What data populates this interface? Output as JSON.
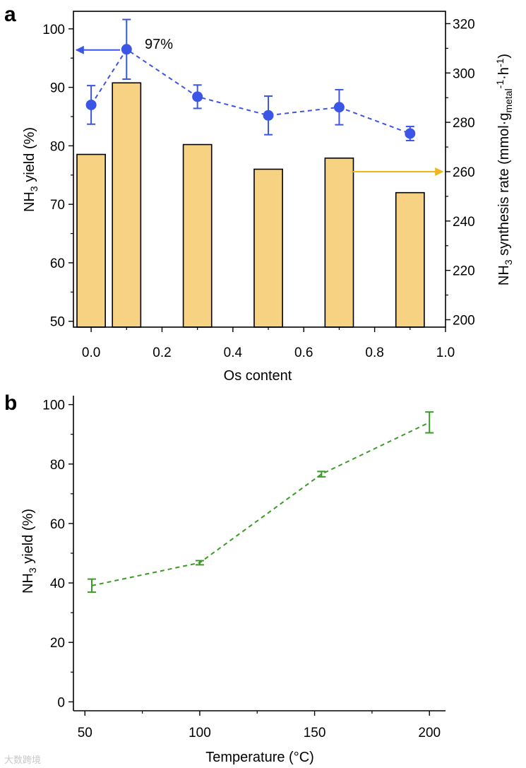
{
  "chart_data": [
    {
      "panel": "a",
      "type": "bar",
      "xlabel": "Os content",
      "xlim": [
        -0.05,
        1.0
      ],
      "xticks": [
        0.0,
        0.2,
        0.4,
        0.6,
        0.8,
        1.0
      ],
      "xtick_labels": [
        "0.0",
        "0.2",
        "0.4",
        "0.6",
        "0.8",
        "1.0"
      ],
      "ylabel_left": "NH3 yield (%)",
      "ylim_left": [
        49,
        103
      ],
      "yticks_left": [
        50,
        60,
        70,
        80,
        90,
        100
      ],
      "ylabel_right": "NH3 synthesis rate (mmol·gmetal−1·h−1)",
      "ylim_right": [
        197,
        325
      ],
      "yticks_right": [
        200,
        220,
        240,
        260,
        280,
        300,
        320
      ],
      "bars": {
        "name": "NH3 synthesis rate",
        "axis": "right",
        "x": [
          0.0,
          0.1,
          0.3,
          0.5,
          0.7,
          0.9
        ],
        "values": [
          267,
          296,
          271,
          261,
          265.5,
          251.5
        ],
        "color": "#f7d283"
      },
      "series": [
        {
          "name": "NH3 yield",
          "axis": "left",
          "x": [
            0.0,
            0.1,
            0.3,
            0.5,
            0.7,
            0.9
          ],
          "values": [
            87.0,
            96.5,
            88.4,
            85.2,
            86.6,
            82.1
          ],
          "errors": [
            3.3,
            5.1,
            2.0,
            3.3,
            3.0,
            1.2
          ],
          "color": "#3b55e6",
          "style": "dashed",
          "marker": "circle"
        }
      ],
      "annotations": [
        {
          "text": "97%",
          "x": 0.1,
          "y": 96.5
        }
      ],
      "arrows": [
        {
          "direction": "left",
          "axis": "left",
          "y": 96.5,
          "color": "#3b55e6"
        },
        {
          "direction": "right",
          "axis": "right",
          "y": 260,
          "color": "#f1b51c"
        }
      ]
    },
    {
      "panel": "b",
      "type": "line",
      "xlabel": "Temperature (°C)",
      "xlim": [
        45,
        207
      ],
      "xticks": [
        50,
        100,
        150,
        200
      ],
      "xtick_labels": [
        "50",
        "100",
        "150",
        "200"
      ],
      "ylabel": "NH3 yield (%)",
      "ylim": [
        -3,
        103
      ],
      "yticks": [
        0,
        20,
        40,
        60,
        80,
        100
      ],
      "series": [
        {
          "name": "NH3 yield",
          "x": [
            53,
            100,
            153,
            200
          ],
          "values": [
            39.1,
            46.8,
            76.6,
            94.0
          ],
          "errors": [
            2.2,
            0.7,
            0.9,
            3.5
          ],
          "color": "#3a9a25",
          "style": "dashed",
          "marker": "none"
        }
      ]
    }
  ],
  "watermark": "大数跨境"
}
